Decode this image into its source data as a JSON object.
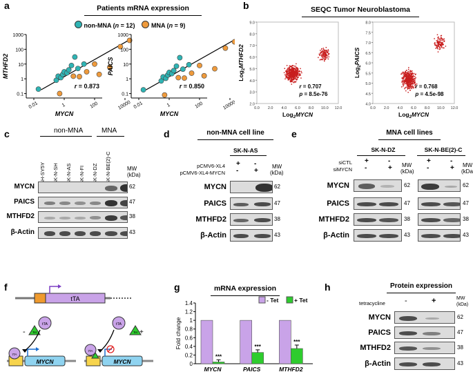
{
  "panels": {
    "a": "a",
    "b": "b",
    "c": "c",
    "d": "d",
    "e": "e",
    "f": "f",
    "g": "g",
    "h": "h"
  },
  "a": {
    "title": "Patients mRNA expression",
    "legend": [
      {
        "label": "non-MNA (",
        "n": "n",
        "rest": " = 12)",
        "color": "#2fb4b4"
      },
      {
        "label": "MNA (",
        "n": "n",
        "rest": " = 9)",
        "color": "#ee9a3c"
      }
    ],
    "plots": [
      {
        "ylabel": "MTHFD2",
        "xlabel": "MYCN",
        "r_label": "r",
        "r_value": " = 0.873"
      },
      {
        "ylabel": "PAICS",
        "xlabel": "MYCN",
        "r_label": "r",
        "r_value": " = 0.850"
      }
    ],
    "yticks": [
      "1000",
      "100",
      "10",
      "1",
      "0.1"
    ],
    "xticks": [
      "0.01",
      "1",
      "100",
      "10000"
    ]
  },
  "b": {
    "title": "SEQC Tumor Neuroblastoma",
    "plots": [
      {
        "ylabel_prefix": "Log",
        "ylabel_sub": "2",
        "ylabel_gene": "MTHFD2",
        "xlabel_prefix": "Log",
        "xlabel_sub": "2",
        "xlabel_gene": "MYCN",
        "r": "= 0.707",
        "p": "= 8.5e-76",
        "yticks": [
          "9.0",
          "8.0",
          "7.0",
          "6.0",
          "5.0",
          "4.0",
          "3.0",
          "2.0"
        ],
        "xticks": [
          "0.0",
          "2.0",
          "4.0",
          "6.0",
          "8.0",
          "10.0",
          "12.0"
        ]
      },
      {
        "ylabel_prefix": "Log",
        "ylabel_sub": "2",
        "ylabel_gene": "PAICS",
        "xlabel_prefix": "Log",
        "xlabel_sub": "2",
        "xlabel_gene": "MYCN",
        "r": "= 0.768",
        "p": "= 4.5e-98",
        "yticks": [
          "8.0",
          "7.5",
          "7.0",
          "6.5",
          "6.0",
          "5.5",
          "5.0",
          "4.5",
          "4.0"
        ],
        "xticks": [
          "0.0",
          "2.0",
          "4.0",
          "6.0",
          "8.0",
          "10.0",
          "12.0"
        ]
      }
    ]
  },
  "c": {
    "group1": "non-MNA",
    "group2": "MNA",
    "lanes": [
      "SH-SY5Y",
      "SK-N-SH",
      "SK-N-AS",
      "SK-N-FI",
      "SK-N-DZ",
      "SK-N-BE(2)-C"
    ],
    "mw_header": "MW\n(kDa)",
    "rows": [
      {
        "label": "MYCN",
        "mw": "62"
      },
      {
        "label": "PAICS",
        "mw": "47"
      },
      {
        "label": "MTHFD2",
        "mw": "38"
      },
      {
        "label": "β-Actin",
        "mw": "43"
      }
    ]
  },
  "d": {
    "title": "non-MNA cell line",
    "cell": "SK-N-AS",
    "conditions": [
      {
        "label": "pCMV6-XL4",
        "signs": [
          "+",
          "-"
        ]
      },
      {
        "label": "pCMV6-XL4-MYCN",
        "signs": [
          "-",
          "+"
        ]
      }
    ],
    "mw": "MW",
    "kda": "(kDa)",
    "rows": [
      {
        "label": "MYCN",
        "mw": "62"
      },
      {
        "label": "PAICS",
        "mw": "47"
      },
      {
        "label": "MTHFD2",
        "mw": "38"
      },
      {
        "label": "β-Actin",
        "mw": "43"
      }
    ]
  },
  "e": {
    "title": "MNA cell lines",
    "cells": [
      "SK-N-DZ",
      "SK-N-BE(2)-C"
    ],
    "conditions": [
      {
        "label": "siCTL",
        "signs": [
          "+",
          "-"
        ]
      },
      {
        "label": "siMYCN",
        "signs": [
          "-",
          "+"
        ]
      }
    ],
    "mw": "MW",
    "kda": "(kDa)",
    "rows": [
      {
        "label": "MYCN",
        "mw": "62"
      },
      {
        "label": "PAICS",
        "mw": "47"
      },
      {
        "label": "MTHFD2",
        "mw": "38"
      },
      {
        "label": "β-Actin",
        "mw": "43"
      }
    ]
  },
  "f": {
    "gene_box": "tTA",
    "protein": "tTA",
    "tet": "Tet",
    "minus": "-",
    "plus": "+",
    "target": "MYCN",
    "tre": "TRE"
  },
  "g": {
    "title": "mRNA expression",
    "chart_data": {
      "type": "bar",
      "categories": [
        "MYCN",
        "PAICS",
        "MTHFD2"
      ],
      "series": [
        {
          "name": "- Tet",
          "values": [
            1.0,
            1.0,
            1.0
          ],
          "color": "#c9a3e8"
        },
        {
          "name": "+ Tet",
          "values": [
            0.04,
            0.26,
            0.35
          ],
          "color": "#2ecc2e",
          "errors": [
            0.05,
            0.06,
            0.08
          ]
        }
      ],
      "annotations": [
        "***",
        "***",
        "***"
      ],
      "ylabel": "Fold change",
      "ylim": [
        0,
        1.4
      ],
      "yticks": [
        "0",
        "0.2",
        "0.4",
        "0.6",
        "0.8",
        "1",
        "1.2",
        "1.4"
      ]
    }
  },
  "h": {
    "title": "Protein expression",
    "condition": "tetracycline",
    "signs": [
      "-",
      "+"
    ],
    "mw": "MW",
    "kda": "(kDa)",
    "rows": [
      {
        "label": "MYCN",
        "mw": "62"
      },
      {
        "label": "PAICS",
        "mw": "47"
      },
      {
        "label": "MTHFD2",
        "mw": "38"
      },
      {
        "label": "β-Actin",
        "mw": "43"
      }
    ]
  }
}
